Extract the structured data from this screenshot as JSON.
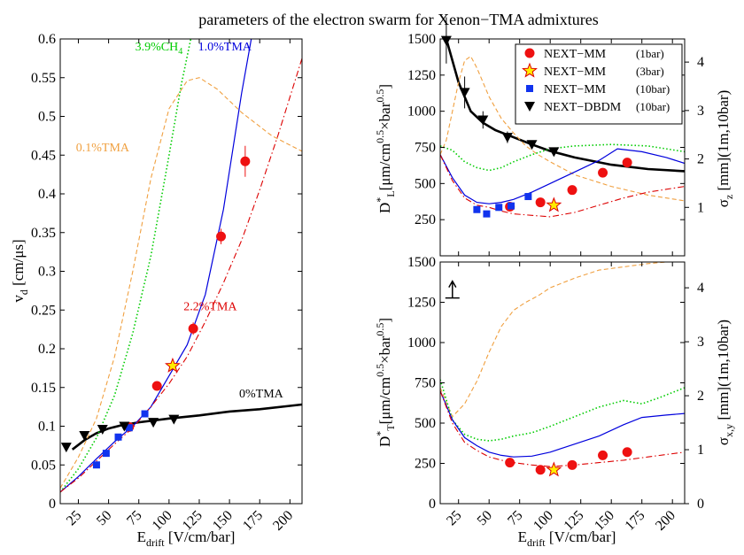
{
  "figure": {
    "title": "parameters of the electron swarm for Xenon−TMA admixtures",
    "xlabel_main": "E",
    "xlabel_sub": "drift",
    "xlabel_unit": " [V/cm/bar]",
    "colors": {
      "tma_0": "#000000",
      "tma_01": "#f0a040",
      "tma_10": "#0000dd",
      "tma_22": "#dd0000",
      "ch4": "#00cc00",
      "marker_red": "#ee1111",
      "marker_star": "#ffee00",
      "marker_blue": "#1133ee",
      "marker_black": "#000000"
    }
  },
  "chart_data": [
    {
      "type": "line",
      "panel": "left",
      "ylabel": "v_d [cm/μs]",
      "ylabel_main": "v",
      "ylabel_sub": "d",
      "ylabel_unit": " [cm/μs]",
      "xlim": [
        10,
        210
      ],
      "ylim": [
        0,
        0.6
      ],
      "xticks": [
        25,
        50,
        75,
        100,
        125,
        150,
        175,
        200
      ],
      "xtick_labels": [
        "25",
        "50",
        "75",
        "100",
        "125",
        "150",
        "175",
        "200"
      ],
      "yticks": [
        0,
        0.05,
        0.1,
        0.15,
        0.2,
        0.25,
        0.3,
        0.35,
        0.4,
        0.45,
        0.5,
        0.55,
        0.6
      ],
      "ytick_labels": [
        "0",
        "0.05",
        "0.1",
        "0.15",
        "0.2",
        "0.25",
        "0.3",
        "0.35",
        "0.4",
        "0.45",
        "0.5",
        "0.55",
        "0.6"
      ],
      "series": [
        {
          "name": "0%TMA",
          "color_key": "tma_0",
          "style": "solid-thick",
          "x": [
            20,
            30,
            40,
            50,
            60,
            75,
            100,
            125,
            150,
            175,
            210
          ],
          "y": [
            0.07,
            0.082,
            0.091,
            0.097,
            0.101,
            0.105,
            0.11,
            0.114,
            0.119,
            0.122,
            0.128
          ]
        },
        {
          "name": "0.1%TMA",
          "color_key": "tma_01",
          "style": "dashed",
          "x": [
            10,
            25,
            40,
            55,
            70,
            85,
            100,
            115,
            125,
            140,
            160,
            185,
            210
          ],
          "y": [
            0.02,
            0.06,
            0.11,
            0.19,
            0.3,
            0.42,
            0.51,
            0.546,
            0.55,
            0.535,
            0.505,
            0.475,
            0.455
          ]
        },
        {
          "name": "3.9%CH4",
          "color_key": "ch4",
          "style": "dotted",
          "x": [
            10,
            25,
            40,
            55,
            70,
            85,
            100,
            110,
            118
          ],
          "y": [
            0.015,
            0.045,
            0.085,
            0.14,
            0.22,
            0.32,
            0.45,
            0.54,
            0.6
          ]
        },
        {
          "name": "1.0%TMA",
          "color_key": "tma_10",
          "style": "solid",
          "x": [
            10,
            25,
            40,
            55,
            70,
            85,
            100,
            115,
            130,
            145,
            160,
            168
          ],
          "y": [
            0.015,
            0.035,
            0.058,
            0.08,
            0.1,
            0.125,
            0.165,
            0.205,
            0.27,
            0.38,
            0.53,
            0.6
          ]
        },
        {
          "name": "2.2%TMA",
          "color_key": "tma_22",
          "style": "dashdot",
          "x": [
            10,
            25,
            40,
            55,
            70,
            85,
            100,
            115,
            130,
            145,
            160,
            175,
            190,
            210
          ],
          "y": [
            0.015,
            0.033,
            0.055,
            0.077,
            0.098,
            0.125,
            0.155,
            0.19,
            0.235,
            0.285,
            0.34,
            0.405,
            0.475,
            0.575
          ]
        }
      ],
      "markers": [
        {
          "set": "NEXT−MM (1bar)",
          "shape": "circle",
          "color_key": "marker_red",
          "x": [
            67,
            90,
            120,
            143,
            163
          ],
          "y": [
            0.099,
            0.152,
            0.226,
            0.345,
            0.442
          ],
          "err": [
            0,
            0,
            0.008,
            0.01,
            0.02
          ]
        },
        {
          "set": "NEXT−MM (3bar)",
          "shape": "star",
          "color_key": "marker_star",
          "x": [
            103
          ],
          "y": [
            0.178
          ],
          "err": [
            0
          ]
        },
        {
          "set": "NEXT−MM (10bar)",
          "shape": "square",
          "color_key": "marker_blue",
          "x": [
            40,
            48,
            58,
            67,
            80
          ],
          "y": [
            0.05,
            0.065,
            0.086,
            0.098,
            0.116
          ],
          "err": [
            0,
            0,
            0,
            0,
            0
          ]
        },
        {
          "set": "NEXT−DBDM (10bar)",
          "shape": "triangle-down",
          "color_key": "marker_black",
          "x": [
            15,
            30,
            45,
            63,
            87,
            104
          ],
          "y": [
            0.073,
            0.088,
            0.096,
            0.1,
            0.105,
            0.109
          ],
          "err": [
            0,
            0,
            0,
            0,
            0,
            0
          ]
        }
      ],
      "annotations": [
        {
          "text": "0.1%TMA",
          "color_key": "tma_01",
          "x": 23,
          "y": 0.455
        },
        {
          "text": "3.9%CH",
          "sub": "4",
          "color_key": "ch4",
          "x": 72,
          "y": 0.585
        },
        {
          "text": "1.0%TMA",
          "color_key": "tma_10",
          "x": 124,
          "y": 0.585
        },
        {
          "text": "2.2%TMA",
          "color_key": "tma_22",
          "x": 112,
          "y": 0.25
        },
        {
          "text": "0%TMA",
          "color_key": "tma_0",
          "x": 158,
          "y": 0.137
        }
      ]
    },
    {
      "type": "line",
      "panel": "top-right",
      "ylabel_main": "D",
      "ylabel_sup": "*",
      "ylabel_sub": "L",
      "ylabel_unit": "[μm/cm",
      "ylabel_unit_sup1": "0.5",
      "ylabel_unit_mid": "×bar",
      "ylabel_unit_sup2": "0.5",
      "ylabel_unit_end": "]",
      "y2label_main": "σ",
      "y2label_sub": "z",
      "y2label_unit": " [mm](1m,10bar)",
      "xlim": [
        10,
        210
      ],
      "ylim": [
        0,
        1500
      ],
      "yticks": [
        250,
        500,
        750,
        1000,
        1250,
        1500
      ],
      "ytick_labels": [
        "250",
        "500",
        "750",
        "1000",
        "1250",
        "1500"
      ],
      "y2ticks": [
        1,
        2,
        3,
        4
      ],
      "y2tick_labels": [
        "1",
        "2",
        "3",
        "4"
      ],
      "y2_per_unit": 335,
      "series": [
        {
          "name": "0%TMA",
          "color_key": "tma_0",
          "style": "solid-thick",
          "x": [
            15,
            25,
            35,
            45,
            55,
            70,
            85,
            100,
            120,
            150,
            180,
            210
          ],
          "y": [
            1500,
            1200,
            1000,
            920,
            870,
            820,
            770,
            725,
            680,
            630,
            600,
            585
          ]
        },
        {
          "name": "0.1%TMA",
          "color_key": "tma_01",
          "style": "dashed",
          "x": [
            10,
            15,
            20,
            25,
            30,
            35,
            40,
            50,
            60,
            70,
            80,
            90,
            100,
            120,
            150,
            180,
            210
          ],
          "y": [
            700,
            800,
            1000,
            1200,
            1350,
            1380,
            1300,
            1100,
            950,
            850,
            760,
            700,
            650,
            560,
            480,
            420,
            380
          ]
        },
        {
          "name": "3.9%CH4",
          "color_key": "ch4",
          "style": "dotted",
          "x": [
            10,
            20,
            30,
            40,
            50,
            60,
            70,
            85,
            100,
            120,
            150,
            180,
            210
          ],
          "y": [
            760,
            730,
            650,
            610,
            590,
            610,
            650,
            700,
            740,
            760,
            770,
            760,
            720
          ]
        },
        {
          "name": "1.0%TMA",
          "color_key": "tma_10",
          "style": "solid",
          "x": [
            10,
            20,
            30,
            40,
            50,
            60,
            70,
            85,
            100,
            120,
            140,
            155,
            175,
            195,
            210
          ],
          "y": [
            700,
            540,
            420,
            370,
            360,
            370,
            390,
            440,
            500,
            580,
            660,
            740,
            720,
            680,
            640
          ]
        },
        {
          "name": "2.2%TMA",
          "color_key": "tma_22",
          "style": "dashdot",
          "x": [
            10,
            20,
            30,
            40,
            50,
            60,
            70,
            85,
            100,
            120,
            140,
            160,
            180,
            210
          ],
          "y": [
            700,
            520,
            400,
            350,
            335,
            310,
            290,
            280,
            270,
            300,
            350,
            400,
            440,
            480
          ]
        }
      ],
      "markers": [
        {
          "set": "NEXT−MM (1bar)",
          "shape": "circle",
          "color_key": "marker_red",
          "x": [
            67,
            92,
            118,
            143,
            163
          ],
          "y": [
            340,
            370,
            455,
            575,
            645
          ],
          "err": [
            0,
            0,
            0,
            20,
            20
          ]
        },
        {
          "set": "NEXT−MM (3bar)",
          "shape": "star",
          "color_key": "marker_star",
          "x": [
            103
          ],
          "y": [
            350
          ],
          "err": [
            0
          ]
        },
        {
          "set": "NEXT−MM (10bar)",
          "shape": "square",
          "color_key": "marker_blue",
          "x": [
            40,
            48,
            58,
            68,
            82
          ],
          "y": [
            320,
            290,
            335,
            345,
            410
          ],
          "err": [
            0,
            0,
            0,
            0,
            0
          ]
        },
        {
          "set": "NEXT−DBDM (10bar)",
          "shape": "triangle-down",
          "color_key": "marker_black",
          "x": [
            15,
            30,
            45,
            65,
            85,
            103
          ],
          "y": [
            1490,
            1130,
            940,
            820,
            770,
            720
          ],
          "err": [
            160,
            110,
            60,
            40,
            25,
            20
          ]
        }
      ],
      "legend": {
        "placement": "top-right",
        "entries": [
          {
            "label": "NEXT−MM",
            "note": "(1bar)",
            "shape": "circle",
            "color_key": "marker_red"
          },
          {
            "label": "NEXT−MM",
            "note": "(3bar)",
            "shape": "star",
            "color_key": "marker_star"
          },
          {
            "label": "NEXT−MM",
            "note": "(10bar)",
            "shape": "square",
            "color_key": "marker_blue"
          },
          {
            "label": "NEXT−DBDM",
            "note": "(10bar)",
            "shape": "triangle-down",
            "color_key": "marker_black"
          }
        ]
      }
    },
    {
      "type": "line",
      "panel": "bottom-right",
      "ylabel_main": "D",
      "ylabel_sup": "*",
      "ylabel_sub": "T",
      "ylabel_unit": "[μm/cm",
      "ylabel_unit_sup1": "0.5",
      "ylabel_unit_mid": "×bar",
      "ylabel_unit_sup2": "0.5",
      "ylabel_unit_end": "]",
      "y2label_main": "σ",
      "y2label_sub": "x,y",
      "y2label_unit": " [mm](1m,10bar)",
      "xlim": [
        10,
        210
      ],
      "ylim": [
        0,
        1500
      ],
      "xticks": [
        25,
        50,
        75,
        100,
        125,
        150,
        175,
        200
      ],
      "xtick_labels": [
        "25",
        "50",
        "75",
        "100",
        "125",
        "150",
        "175",
        "200"
      ],
      "yticks": [
        0,
        250,
        500,
        750,
        1000,
        1250,
        1500
      ],
      "ytick_labels": [
        "0",
        "250",
        "500",
        "750",
        "1000",
        "1250",
        "1500"
      ],
      "y2ticks": [
        0,
        1,
        2,
        3,
        4
      ],
      "y2tick_labels": [
        "0",
        "1",
        "2",
        "3",
        "4"
      ],
      "y2_per_unit": 335,
      "series": [
        {
          "name": "0.1%TMA",
          "color_key": "tma_01",
          "style": "dashed",
          "x": [
            10,
            20,
            30,
            40,
            50,
            60,
            70,
            80,
            90,
            100,
            120,
            140,
            160,
            180,
            195,
            210
          ],
          "y": [
            720,
            540,
            620,
            760,
            940,
            1100,
            1200,
            1250,
            1290,
            1340,
            1400,
            1450,
            1470,
            1490,
            1500,
            1500
          ]
        },
        {
          "name": "3.9%CH4",
          "color_key": "ch4",
          "style": "dotted",
          "x": [
            10,
            20,
            30,
            40,
            50,
            60,
            70,
            85,
            100,
            120,
            140,
            160,
            175,
            190,
            210
          ],
          "y": [
            770,
            520,
            430,
            400,
            390,
            400,
            420,
            440,
            480,
            540,
            600,
            640,
            620,
            660,
            720
          ]
        },
        {
          "name": "1.0%TMA",
          "color_key": "tma_10",
          "style": "solid",
          "x": [
            10,
            20,
            30,
            40,
            50,
            60,
            70,
            85,
            100,
            120,
            140,
            160,
            175,
            195,
            210
          ],
          "y": [
            700,
            520,
            410,
            360,
            320,
            300,
            290,
            295,
            320,
            370,
            420,
            490,
            535,
            550,
            560
          ]
        },
        {
          "name": "2.2%TMA",
          "color_key": "tma_22",
          "style": "dashdot",
          "x": [
            10,
            20,
            30,
            40,
            50,
            60,
            70,
            85,
            100,
            120,
            140,
            160,
            180,
            210
          ],
          "y": [
            700,
            500,
            380,
            330,
            290,
            270,
            255,
            240,
            230,
            240,
            255,
            270,
            290,
            320
          ]
        }
      ],
      "markers": [
        {
          "set": "NEXT−MM (1bar)",
          "shape": "circle",
          "color_key": "marker_red",
          "x": [
            67,
            92,
            118,
            143,
            163
          ],
          "y": [
            255,
            210,
            240,
            300,
            320
          ],
          "err": [
            0,
            0,
            0,
            0,
            0
          ]
        },
        {
          "set": "NEXT−MM (3bar)",
          "shape": "star",
          "color_key": "marker_star",
          "x": [
            103
          ],
          "y": [
            210
          ],
          "err": [
            0
          ]
        }
      ],
      "annotations": [
        {
          "text": "↑",
          "kind": "arrow-marker",
          "x": 20,
          "y": 1310
        }
      ]
    }
  ]
}
